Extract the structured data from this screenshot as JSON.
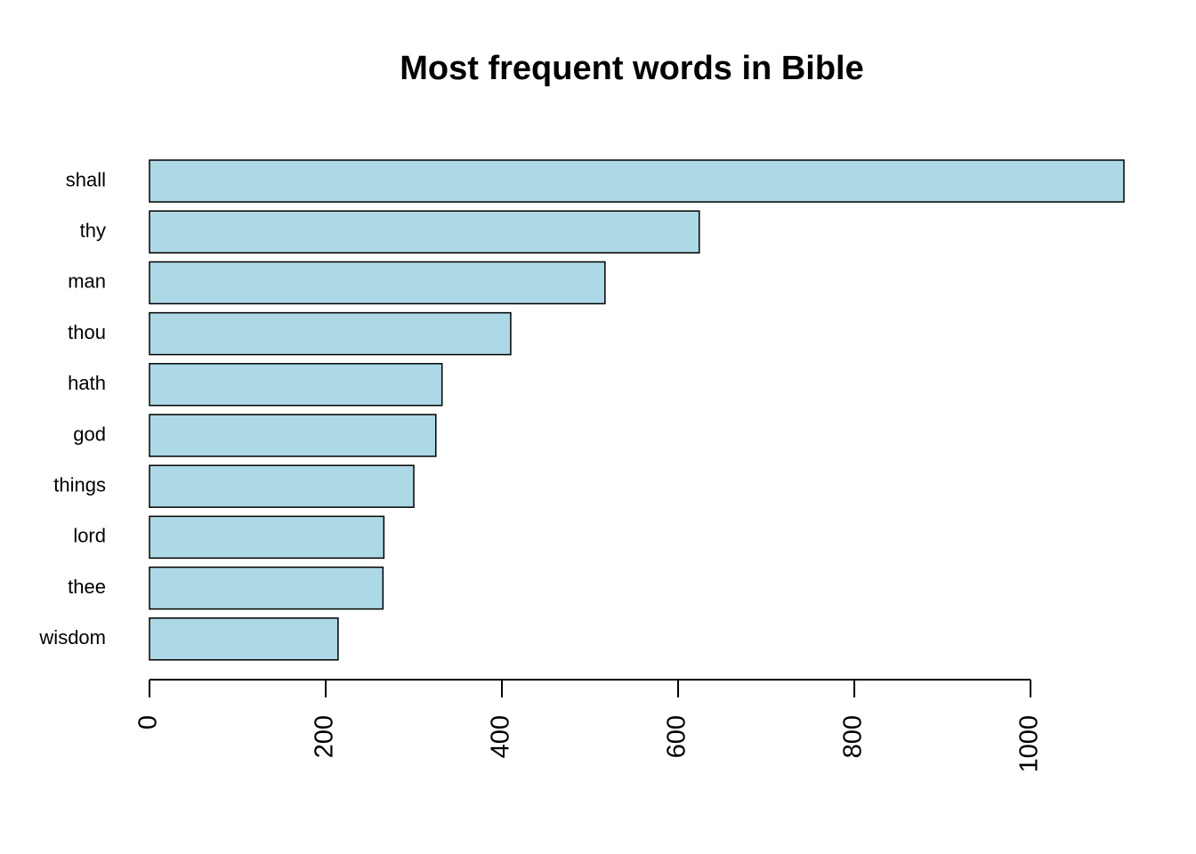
{
  "chart_data": {
    "type": "barh",
    "title": "Most frequent words in Bible",
    "categories": [
      "shall",
      "thy",
      "man",
      "thou",
      "hath",
      "god",
      "things",
      "lord",
      "thee",
      "wisdom"
    ],
    "values": [
      1106,
      624,
      517,
      410,
      332,
      325,
      300,
      266,
      265,
      214
    ],
    "color": "#add8e6",
    "xlim": [
      0,
      1106
    ],
    "xticks": [
      0,
      200,
      400,
      600,
      800,
      1000
    ]
  }
}
